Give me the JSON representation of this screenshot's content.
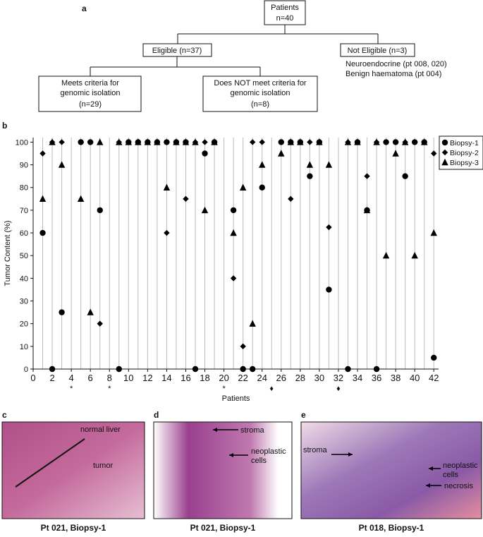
{
  "panel_a": {
    "label": "a",
    "nodes": [
      {
        "lines": [
          "Patients",
          "n=40"
        ]
      },
      {
        "lines": [
          "Eligible (n=37)"
        ]
      },
      {
        "lines": [
          "Not Eligible (n=3)"
        ]
      },
      {
        "lines": [
          "Meets criteria for",
          "genomic isolation",
          "(n=29)"
        ]
      },
      {
        "lines": [
          "Does NOT meet criteria for",
          "genomic isolation",
          "(n=8)"
        ]
      }
    ],
    "notes": [
      "Neuroendocrine (pt 008, 020)",
      "Benign haematoma (pt 004)"
    ]
  },
  "chart_data": {
    "type": "scatter",
    "label": "b",
    "xlabel": "Patients",
    "ylabel": "Tumor Content (%)",
    "x": [
      1,
      2,
      3,
      4,
      5,
      6,
      7,
      8,
      9,
      10,
      11,
      12,
      13,
      14,
      15,
      16,
      17,
      18,
      19,
      20,
      21,
      22,
      23,
      24,
      25,
      26,
      27,
      28,
      29,
      30,
      31,
      32,
      33,
      34,
      35,
      36,
      37,
      38,
      39,
      40,
      41,
      42
    ],
    "series": [
      {
        "name": "Biopsy-1",
        "marker": "circle",
        "color": "#000000",
        "values": [
          60,
          0,
          25,
          null,
          100,
          100,
          70,
          null,
          0,
          100,
          100,
          100,
          100,
          100,
          100,
          100,
          0,
          95,
          100,
          null,
          70,
          0,
          0,
          80,
          null,
          100,
          100,
          100,
          85,
          100,
          35,
          null,
          0,
          100,
          70,
          0,
          100,
          100,
          85,
          100,
          100,
          5
        ]
      },
      {
        "name": "Biopsy-2",
        "marker": "diamond",
        "color": "#000000",
        "values": [
          95,
          100,
          100,
          null,
          100,
          100,
          20,
          null,
          100,
          100,
          100,
          100,
          100,
          60,
          100,
          75,
          100,
          100,
          100,
          null,
          40,
          10,
          100,
          100,
          null,
          100,
          75,
          100,
          100,
          100,
          62.5,
          null,
          100,
          100,
          85,
          100,
          100,
          100,
          100,
          100,
          100,
          95
        ]
      },
      {
        "name": "Biopsy-3",
        "marker": "triangle",
        "color": "#000000",
        "values": [
          75,
          100,
          90,
          null,
          75,
          25,
          100,
          null,
          100,
          100,
          100,
          100,
          100,
          80,
          100,
          100,
          100,
          70,
          100,
          null,
          60,
          80,
          20,
          90,
          null,
          95,
          100,
          100,
          90,
          100,
          90,
          null,
          100,
          100,
          70,
          100,
          50,
          95,
          100,
          50,
          100,
          60
        ]
      }
    ],
    "annotations": [
      {
        "x": 4,
        "label": "*"
      },
      {
        "x": 8,
        "label": "*"
      },
      {
        "x": 20,
        "label": "*"
      },
      {
        "x": 25,
        "label": "♦"
      },
      {
        "x": 32,
        "label": "♦"
      }
    ],
    "xlim": [
      0,
      42.5
    ],
    "ylim": [
      0,
      102
    ],
    "xticks": [
      0,
      2,
      4,
      6,
      8,
      10,
      12,
      14,
      16,
      18,
      20,
      22,
      24,
      26,
      28,
      30,
      32,
      34,
      36,
      38,
      40,
      42
    ],
    "yticks": [
      0,
      10,
      20,
      30,
      40,
      50,
      60,
      70,
      80,
      90,
      100
    ],
    "grid": true,
    "legend": "upper right"
  },
  "images": [
    {
      "label": "c",
      "caption": "Pt 021, Biopsy-1",
      "annotations": [
        "normal liver",
        "tumor"
      ]
    },
    {
      "label": "d",
      "caption": "Pt 021, Biopsy-1",
      "annotations": [
        "stroma",
        "neoplastic",
        "cells"
      ]
    },
    {
      "label": "e",
      "caption": "Pt 018, Biopsy-1",
      "annotations": [
        "stroma",
        "neoplastic",
        "cells",
        "necrosis"
      ]
    }
  ]
}
